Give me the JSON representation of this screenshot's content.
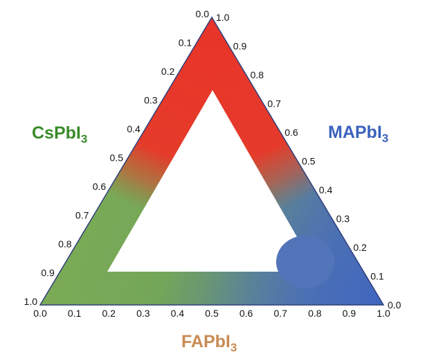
{
  "diagram": {
    "type": "ternary-composition-diagram",
    "components": {
      "left": {
        "label": "CsPbI",
        "subscript": "3",
        "color": "#3a8a2a"
      },
      "right": {
        "label": "MAPbI",
        "subscript": "3",
        "color": "#3a62bd"
      },
      "bottom": {
        "label": "FAPbI",
        "subscript": "3",
        "color": "#c98a52"
      }
    },
    "left_axis_ticks": [
      "0.0",
      "0.1",
      "0.2",
      "0.3",
      "0.4",
      "0.5",
      "0.6",
      "0.7",
      "0.8",
      "0.9",
      "1.0"
    ],
    "right_axis_ticks": [
      "1.0",
      "0.9",
      "0.8",
      "0.7",
      "0.6",
      "0.5",
      "0.4",
      "0.3",
      "0.2",
      "0.1",
      "0.0"
    ],
    "bottom_axis_ticks": [
      "0.0",
      "0.1",
      "0.2",
      "0.3",
      "0.4",
      "0.5",
      "0.6",
      "0.7",
      "0.8",
      "0.9",
      "1.0"
    ],
    "colors": {
      "red_region": "#e8362a",
      "green_region": "#7aac4e",
      "blue_region": "#4f72b6",
      "edge": "#2e3f7a"
    }
  }
}
